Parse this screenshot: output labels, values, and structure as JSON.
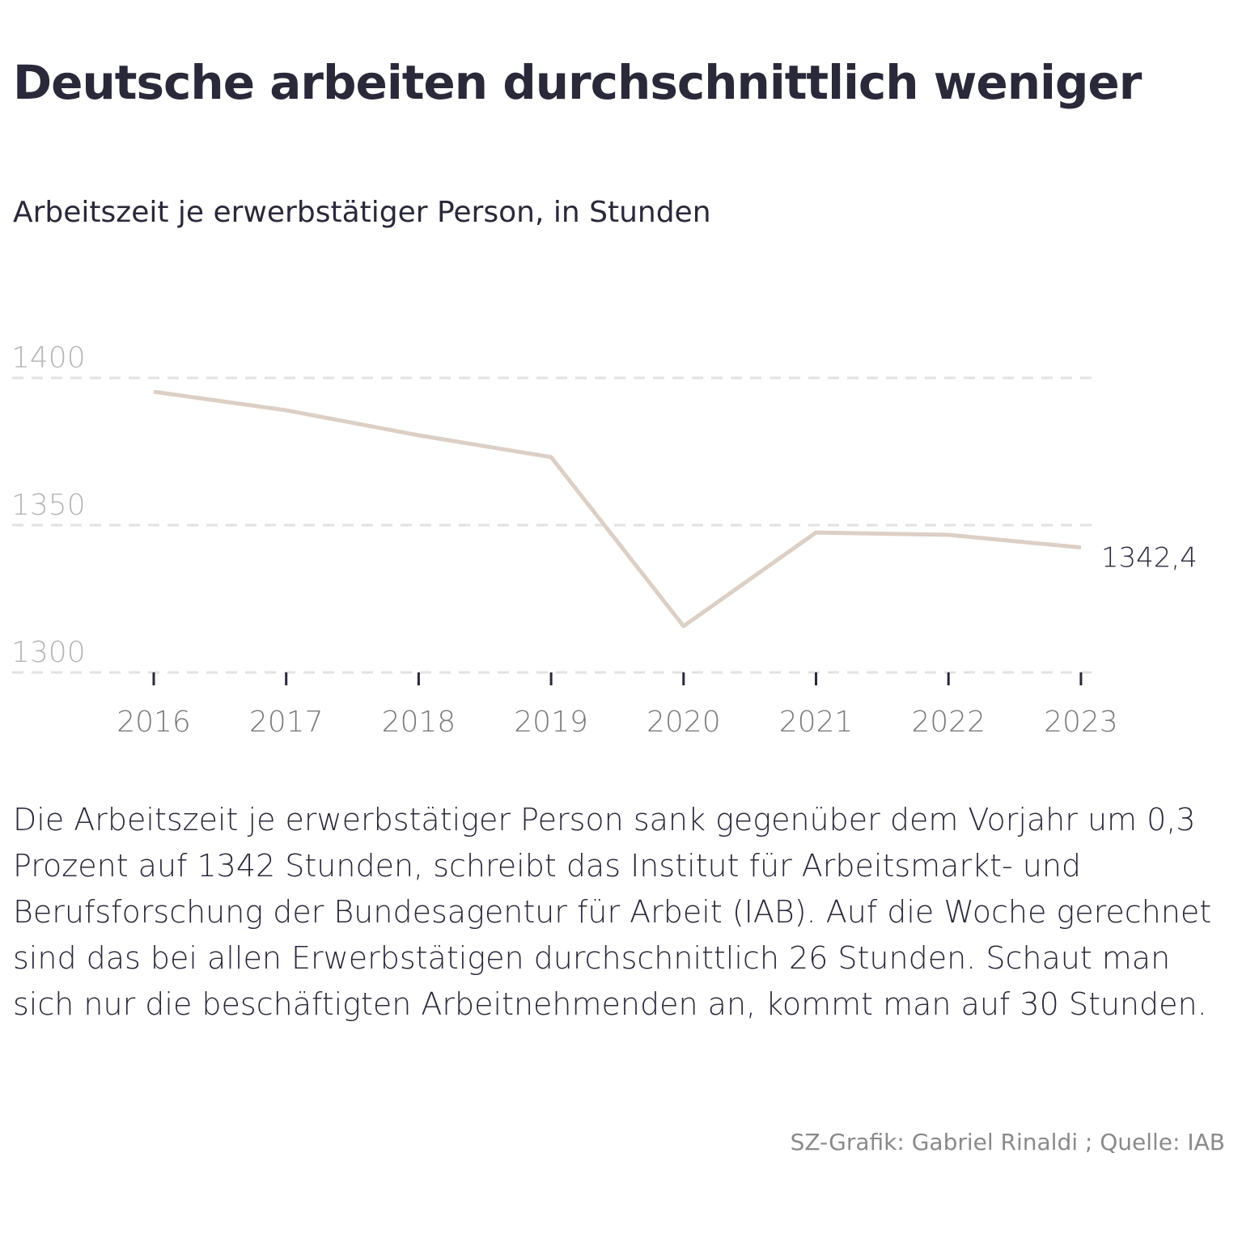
{
  "title": "Deutsche arbeiten durchschnittlich weniger",
  "subtitle": "Arbeitszeit je erwerbstätiger Person, in Stunden",
  "description": "Die Arbeitszeit je erwerbstätiger Person sank gegenüber dem Vorjahr um 0,3 Prozent auf 1342 Stunden, schreibt das Institut für Arbeitsmarkt- und Berufsforschung der Bundesagentur für Arbeit (IAB). Auf die Woche gerechnet sind das bei allen Erwerbstätigen durchschnittlich 26 Stunden. Schaut man sich nur die beschäftigten Arbeitnehmenden an, kommt man auf 30 Stunden.",
  "source": "SZ-Grafik: Gabriel Rinaldi ; Quelle: IAB",
  "chart_data": {
    "type": "line",
    "x": [
      "2016",
      "2017",
      "2018",
      "2019",
      "2020",
      "2021",
      "2022",
      "2023"
    ],
    "values": [
      1395.3,
      1389.0,
      1380.5,
      1373.1,
      1315.7,
      1347.5,
      1346.7,
      1342.4
    ],
    "end_label": "1342,4",
    "yticks": [
      1300,
      1350,
      1400
    ],
    "ytick_labels": [
      "1300",
      "1350",
      "1400"
    ],
    "ylim": [
      1300,
      1400
    ],
    "grid": true,
    "line_color": "#dccfc5",
    "grid_color": "#e2e2e2"
  }
}
